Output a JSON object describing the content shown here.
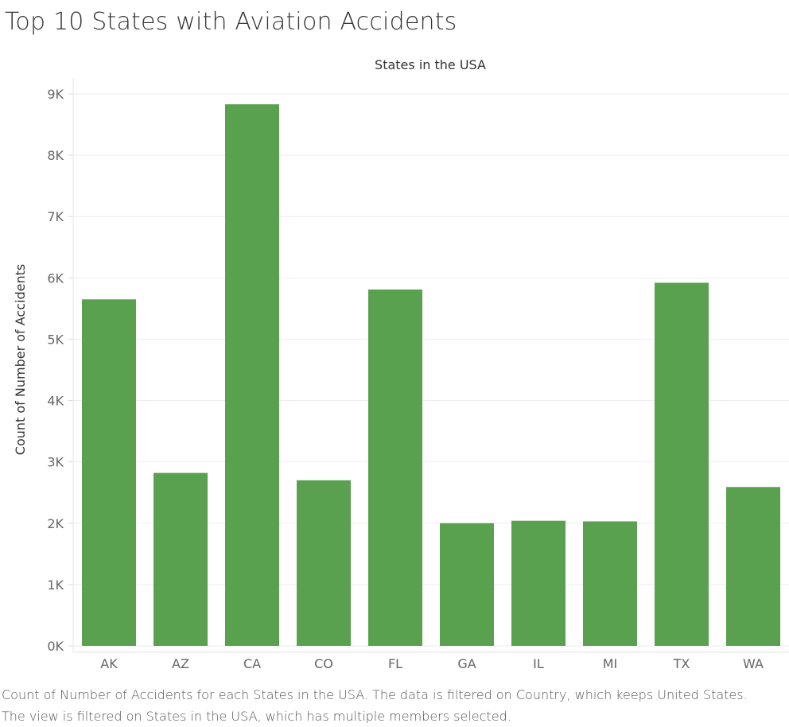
{
  "title": "Top 10 States with Aviation Accidents",
  "caption": {
    "line1": "Count of Number of Accidents for each States in the USA. The data is filtered on Country, which keeps United States.",
    "line2": "The view is filtered on States in the USA, which has multiple members selected."
  },
  "colors": {
    "bar": "#59a14f",
    "grid": "#eeeeee",
    "axis_text": "#666666",
    "label_text": "#333333"
  },
  "chart_data": {
    "type": "bar",
    "title": "Top 10 States with Aviation Accidents",
    "xlabel": "States in the USA",
    "ylabel": "Count of Number of Accidents",
    "categories": [
      "AK",
      "AZ",
      "CA",
      "CO",
      "FL",
      "GA",
      "IL",
      "MI",
      "TX",
      "WA"
    ],
    "values": [
      5650,
      2820,
      8830,
      2700,
      5810,
      2000,
      2040,
      2030,
      5920,
      2590
    ],
    "ylim": [
      0,
      9000
    ],
    "yticks": [
      0,
      1000,
      2000,
      3000,
      4000,
      5000,
      6000,
      7000,
      8000,
      9000
    ],
    "ytick_labels": [
      "0K",
      "1K",
      "2K",
      "3K",
      "4K",
      "5K",
      "6K",
      "7K",
      "8K",
      "9K"
    ],
    "xlabel_position": "top",
    "grid": true,
    "legend": "none"
  }
}
